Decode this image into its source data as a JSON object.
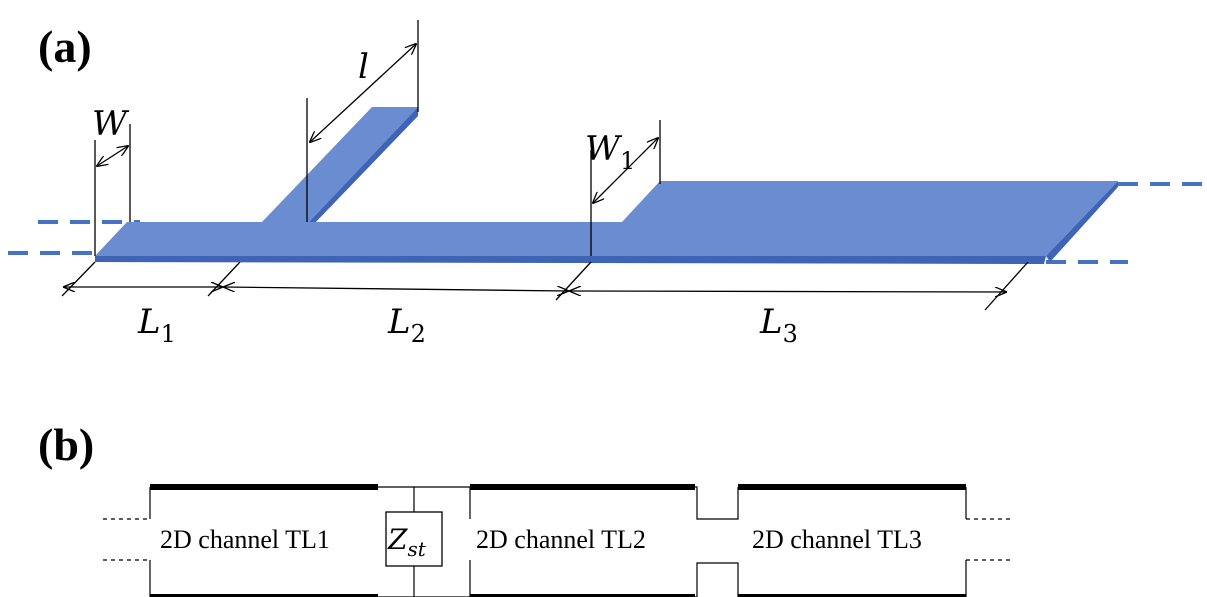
{
  "panel_a": {
    "label": "(a)",
    "dims": {
      "W": "W",
      "l": "l",
      "W1_main": "W",
      "W1_sub": "1",
      "L1_main": "L",
      "L1_sub": "1",
      "L2_main": "L",
      "L2_sub": "2",
      "L3_main": "L",
      "L3_sub": "3"
    }
  },
  "panel_b": {
    "label": "(b)",
    "tl1": "2D channel  TL1",
    "tl2": "2D channel  TL2",
    "tl3": "2D channel  TL3",
    "z_main": "Z",
    "z_sub": "st"
  },
  "colors": {
    "metal": "#6a8cd0",
    "metal_edge": "#3f63b5",
    "dashed_line": "#4472c4"
  }
}
